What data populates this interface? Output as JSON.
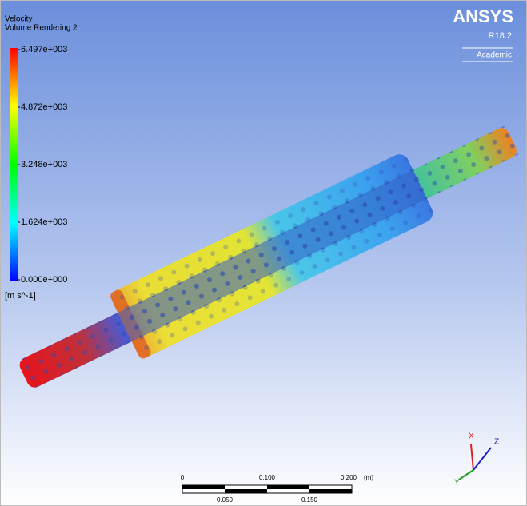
{
  "header": {
    "variable": "Velocity",
    "object": "Volume Rendering 2"
  },
  "legend": {
    "labels": [
      "6.497e+003",
      "4.872e+003",
      "3.248e+003",
      "1.624e+003",
      "0.000e+000"
    ],
    "unit": "[m s^-1]"
  },
  "logo": {
    "brand": "ANSYS",
    "release": "R18.2",
    "license": "Academic"
  },
  "scale_bar": {
    "top_labels": [
      "0",
      "0.100",
      "0.200"
    ],
    "unit": "(m)",
    "bottom_labels": [
      "0.050",
      "0.150"
    ]
  },
  "triad": {
    "x": "X",
    "y": "Y",
    "z": "Z"
  }
}
